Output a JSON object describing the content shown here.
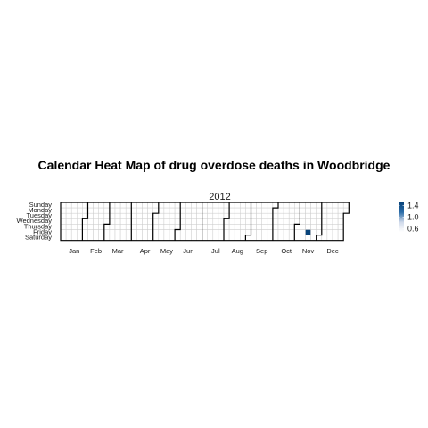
{
  "chart_data": {
    "type": "heatmap",
    "title": "Calendar Heat Map of drug overdose deaths in Woodbridge",
    "year_label": "2012",
    "xlabel": "",
    "ylabel": "",
    "weekdays": [
      "Sunday",
      "Monday",
      "Tuesday",
      "Wednesday",
      "Thursday",
      "Friday",
      "Saturday"
    ],
    "months": [
      "Jan",
      "Feb",
      "Mar",
      "Apr",
      "May",
      "Jun",
      "Jul",
      "Aug",
      "Sep",
      "Oct",
      "Nov",
      "Dec"
    ],
    "values": [
      {
        "date": "2012-11-16",
        "value": 1.5
      }
    ],
    "legend": {
      "placement": "right",
      "ticks": [
        1.4,
        1.0,
        0.6
      ],
      "range": [
        0.5,
        1.5
      ],
      "colors": [
        "#ffffff",
        "#cfd9ea",
        "#2b6ca8",
        "#08437a"
      ]
    },
    "grid": true,
    "empty_color": "#ffffff",
    "grid_color": "#cccccc",
    "month_border_color": "#000000"
  }
}
